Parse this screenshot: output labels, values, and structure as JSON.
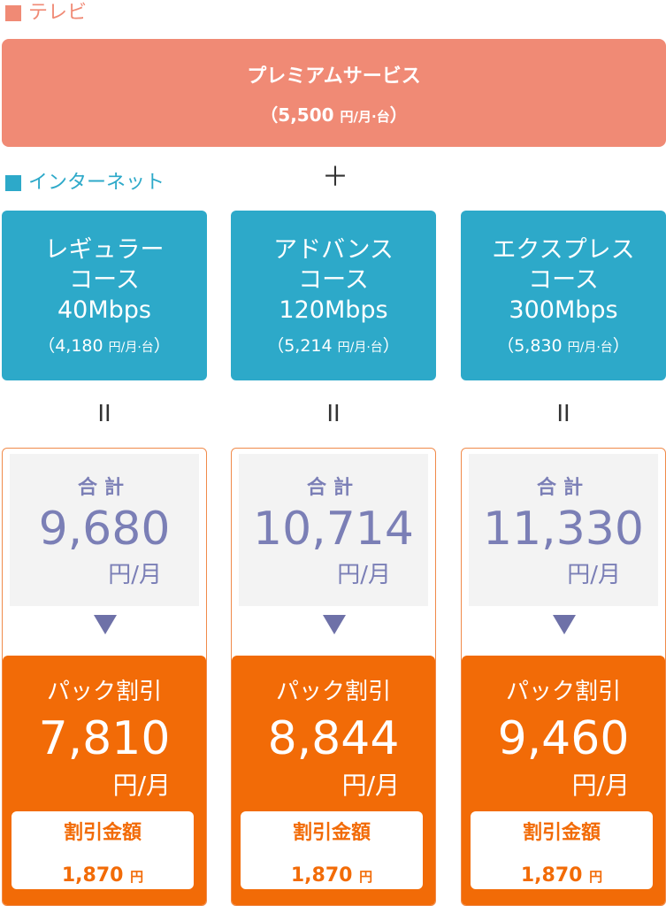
{
  "tv": {
    "label": "テレビ",
    "service_name": "プレミアムサービス",
    "price_open": "（5,500 ",
    "price_unit": "円/月·台",
    "price_close": "）"
  },
  "internet": {
    "label": "インターネット"
  },
  "plus": "＋",
  "equals": "II",
  "colors": {
    "tv": "#f08a75",
    "internet": "#2da9c9",
    "total_text": "#7b7fb6",
    "discount": "#f26b07"
  },
  "plans": [
    {
      "line1": "レギュラー",
      "line2": "コース",
      "speed": "40Mbps",
      "price_open": "（4,180 ",
      "price_unit": "円/月·台",
      "price_close": "）",
      "total_label": "合計",
      "total_value": "9,680",
      "total_unit": "円/月",
      "discount_label": "パック割引",
      "discount_value": "7,810",
      "discount_unit": "円/月",
      "amount_label": "割引金額",
      "amount_value": "1,870 ",
      "amount_unit": "円"
    },
    {
      "line1": "アドバンス",
      "line2": "コース",
      "speed": "120Mbps",
      "price_open": "（5,214 ",
      "price_unit": "円/月·台",
      "price_close": "）",
      "total_label": "合計",
      "total_value": "10,714",
      "total_unit": "円/月",
      "discount_label": "パック割引",
      "discount_value": "8,844",
      "discount_unit": "円/月",
      "amount_label": "割引金額",
      "amount_value": "1,870 ",
      "amount_unit": "円"
    },
    {
      "line1": "エクスプレス",
      "line2": "コース",
      "speed": "300Mbps",
      "price_open": "（5,830 ",
      "price_unit": "円/月·台",
      "price_close": "）",
      "total_label": "合計",
      "total_value": "11,330",
      "total_unit": "円/月",
      "discount_label": "パック割引",
      "discount_value": "9,460",
      "discount_unit": "円/月",
      "amount_label": "割引金額",
      "amount_value": "1,870 ",
      "amount_unit": "円"
    }
  ]
}
